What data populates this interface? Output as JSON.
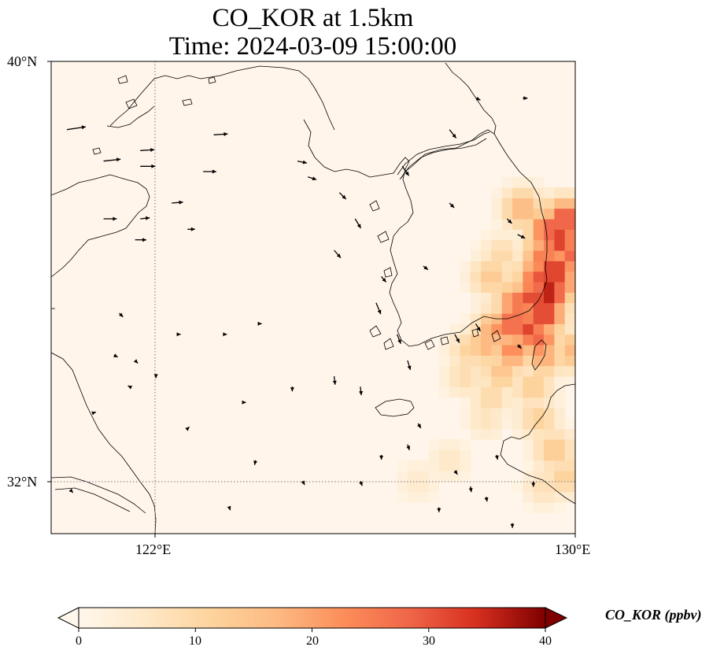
{
  "title": {
    "line1": "CO_KOR at 1.5km",
    "line2": "Time: 2024-03-09 15:00:00"
  },
  "map": {
    "lat_range": [
      31,
      40
    ],
    "lon_range": [
      120,
      130
    ],
    "gridlines": {
      "latitude": 32,
      "longitude": 122
    },
    "lat_ticks": [
      {
        "value": 40,
        "label": "40°N"
      },
      {
        "value": 32,
        "label": "32°N"
      }
    ],
    "lon_ticks": [
      {
        "value": 122,
        "label": "122°E"
      },
      {
        "value": 130,
        "label": "130°E"
      }
    ],
    "background_color": "#fff5eb",
    "plume_color_scale": "OrRd"
  },
  "chart_data": {
    "type": "heatmap",
    "variable": "CO_KOR (ppbv)",
    "range": [
      0,
      40
    ],
    "plume_cells": [
      [
        129.8,
        37.0,
        32
      ],
      [
        129.5,
        36.8,
        30
      ],
      [
        129.7,
        36.6,
        34
      ],
      [
        129.9,
        36.3,
        28
      ],
      [
        129.4,
        36.3,
        26
      ],
      [
        129.6,
        36.0,
        36
      ],
      [
        129.3,
        35.9,
        30
      ],
      [
        129.5,
        35.6,
        38
      ],
      [
        129.2,
        35.5,
        33
      ],
      [
        128.9,
        35.4,
        27
      ],
      [
        129.4,
        35.2,
        35
      ],
      [
        128.8,
        35.0,
        30
      ],
      [
        129.1,
        34.9,
        32
      ],
      [
        128.5,
        34.9,
        22
      ],
      [
        129.3,
        34.7,
        28
      ],
      [
        128.8,
        34.5,
        24
      ],
      [
        128.3,
        34.6,
        18
      ],
      [
        129.4,
        34.4,
        20
      ],
      [
        128.0,
        34.5,
        12
      ],
      [
        128.6,
        34.1,
        15
      ],
      [
        127.9,
        34.0,
        9
      ],
      [
        128.4,
        33.6,
        10
      ],
      [
        129.2,
        33.8,
        13
      ],
      [
        128.3,
        33.2,
        7
      ],
      [
        129.3,
        33.2,
        12
      ],
      [
        129.6,
        32.6,
        14
      ],
      [
        129.8,
        32.1,
        12
      ],
      [
        129.4,
        31.9,
        8
      ],
      [
        127.0,
        32.0,
        5
      ],
      [
        127.6,
        32.4,
        6
      ],
      [
        130.0,
        35.8,
        22
      ],
      [
        130.0,
        34.5,
        18
      ],
      [
        128.4,
        35.9,
        14
      ],
      [
        128.6,
        36.3,
        10
      ],
      [
        129.0,
        37.2,
        18
      ]
    ]
  },
  "wind_vectors": [
    [
      120.3,
      38.7,
      2.0,
      0.3
    ],
    [
      121.0,
      38.1,
      1.8,
      0.2
    ],
    [
      121.7,
      38.3,
      1.5,
      0.1
    ],
    [
      121.7,
      38.0,
      1.6,
      0.0
    ],
    [
      122.3,
      37.3,
      1.2,
      0.1
    ],
    [
      122.9,
      37.9,
      1.4,
      0.0
    ],
    [
      123.1,
      38.6,
      1.5,
      0.1
    ],
    [
      121.0,
      37.0,
      1.4,
      0.0
    ],
    [
      121.6,
      36.6,
      1.2,
      0.0
    ],
    [
      121.7,
      37.0,
      1.0,
      0.1
    ],
    [
      122.6,
      36.8,
      0.8,
      0.0
    ],
    [
      124.7,
      38.1,
      1.0,
      -0.2
    ],
    [
      124.9,
      37.8,
      0.9,
      -0.3
    ],
    [
      125.5,
      37.5,
      0.7,
      -0.7
    ],
    [
      125.8,
      37.0,
      0.6,
      -1.0
    ],
    [
      125.4,
      36.4,
      0.7,
      -0.8
    ],
    [
      126.7,
      38.0,
      0.7,
      -1.0
    ],
    [
      127.6,
      38.7,
      0.7,
      -0.9
    ],
    [
      128.1,
      39.3,
      0.5,
      -0.2
    ],
    [
      129.0,
      39.3,
      0.5,
      0.0
    ],
    [
      127.1,
      36.1,
      0.5,
      -0.4
    ],
    [
      127.6,
      37.3,
      0.5,
      -0.5
    ],
    [
      128.7,
      37.0,
      0.5,
      -0.5
    ],
    [
      128.9,
      36.7,
      0.8,
      -0.4
    ],
    [
      126.2,
      35.4,
      0.5,
      -1.2
    ],
    [
      126.6,
      34.8,
      0.4,
      -1.0
    ],
    [
      126.8,
      34.3,
      0.3,
      -1.0
    ],
    [
      127.7,
      34.8,
      0.5,
      -0.9
    ],
    [
      128.1,
      35.0,
      0.5,
      -0.8
    ],
    [
      126.3,
      35.9,
      0.5,
      -0.6
    ],
    [
      121.3,
      35.2,
      0.4,
      -0.4
    ],
    [
      121.6,
      34.3,
      0.3,
      -0.3
    ],
    [
      121.2,
      34.4,
      0.4,
      -0.2
    ],
    [
      122.4,
      34.8,
      0.4,
      0.0
    ],
    [
      123.3,
      34.8,
      0.3,
      0.0
    ],
    [
      125.4,
      34.0,
      0.1,
      -0.9
    ],
    [
      125.9,
      33.8,
      0.1,
      -0.9
    ],
    [
      124.6,
      33.8,
      0.0,
      -0.5
    ],
    [
      127.0,
      33.1,
      0.3,
      -0.5
    ],
    [
      126.8,
      32.7,
      0.2,
      -0.6
    ],
    [
      127.7,
      32.2,
      0.3,
      -0.4
    ],
    [
      128.5,
      32.5,
      0.1,
      -0.5
    ],
    [
      129.2,
      32.0,
      0.0,
      -0.6
    ],
    [
      128.0,
      31.9,
      0.1,
      -0.6
    ],
    [
      127.4,
      31.5,
      0.0,
      -0.5
    ],
    [
      128.3,
      31.7,
      0.1,
      -0.5
    ],
    [
      128.8,
      31.2,
      0.0,
      -0.5
    ],
    [
      126.3,
      32.5,
      0.0,
      -0.5
    ],
    [
      125.9,
      32.0,
      0.2,
      -0.5
    ],
    [
      123.9,
      32.4,
      -0.1,
      -0.5
    ],
    [
      124.8,
      32.0,
      0.2,
      -0.4
    ],
    [
      123.4,
      31.5,
      0.1,
      -0.3
    ],
    [
      122.0,
      34.0,
      0.0,
      -0.2
    ],
    [
      121.5,
      33.8,
      -0.2,
      0.1
    ],
    [
      123.7,
      33.5,
      0.1,
      0.0
    ],
    [
      120.8,
      33.3,
      0.3,
      0.1
    ],
    [
      120.4,
      31.8,
      0.1,
      -0.1
    ],
    [
      124.0,
      35.0,
      0.1,
      0.0
    ],
    [
      122.6,
      33.0,
      0.2,
      0.2
    ],
    [
      128.9,
      34.6,
      0.4,
      -0.4
    ]
  ],
  "colorbar": {
    "label": "CO_KOR (ppbv)",
    "min": 0,
    "max": 40,
    "ticks": [
      "0",
      "10",
      "20",
      "30",
      "40"
    ]
  }
}
